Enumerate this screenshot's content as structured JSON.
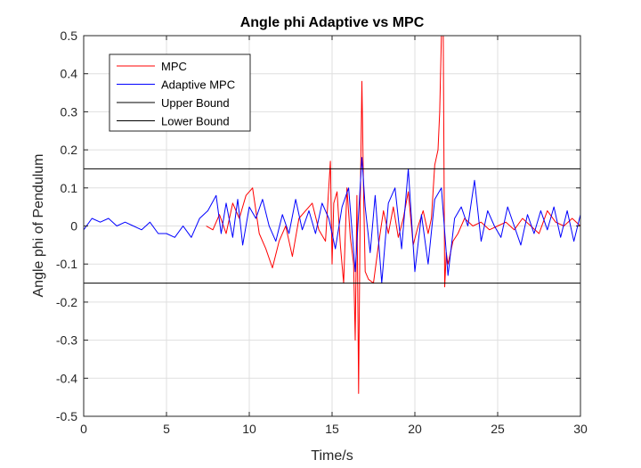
{
  "chart_data": {
    "type": "line",
    "title": "Angle phi Adaptive vs MPC",
    "xlabel": "Time/s",
    "ylabel": "Angle phi of Pendulum",
    "xlim": [
      0,
      30
    ],
    "ylim": [
      -0.5,
      0.5
    ],
    "xticks": [
      0,
      5,
      10,
      15,
      20,
      25,
      30
    ],
    "yticks": [
      -0.5,
      -0.4,
      -0.3,
      -0.2,
      -0.1,
      0,
      0.1,
      0.2,
      0.3,
      0.4,
      0.5
    ],
    "xtick_labels": [
      "0",
      "5",
      "10",
      "15",
      "20",
      "25",
      "30"
    ],
    "ytick_labels": [
      "-0.5",
      "-0.4",
      "-0.3",
      "-0.2",
      "-0.1",
      "0",
      "0.1",
      "0.2",
      "0.3",
      "0.4",
      "0.5"
    ],
    "grid": true,
    "legend_position": "top-left",
    "series": [
      {
        "name": "MPC",
        "color": "#ff0000",
        "x": [
          7.4,
          7.8,
          8.2,
          8.6,
          9.0,
          9.4,
          9.8,
          10.2,
          10.6,
          11.0,
          11.4,
          11.8,
          12.2,
          12.6,
          13.0,
          13.4,
          13.8,
          14.2,
          14.6,
          14.9,
          15.0,
          15.1,
          15.3,
          15.5,
          15.7,
          15.9,
          16.1,
          16.3,
          16.4,
          16.5,
          16.6,
          16.7,
          16.8,
          16.9,
          17.0,
          17.2,
          17.5,
          17.8,
          18.1,
          18.4,
          18.7,
          19.0,
          19.3,
          19.6,
          19.9,
          20.2,
          20.5,
          20.8,
          21.0,
          21.2,
          21.4,
          21.5,
          21.6,
          21.7,
          21.8,
          21.9,
          22.0,
          22.3,
          22.6,
          23.0,
          23.5,
          24.0,
          24.5,
          25.0,
          25.5,
          26.0,
          26.5,
          27.0,
          27.5,
          28.0,
          28.5,
          29.0,
          29.5,
          30.0
        ],
        "y": [
          0.0,
          -0.01,
          0.03,
          -0.02,
          0.06,
          0.02,
          0.08,
          0.1,
          -0.02,
          -0.06,
          -0.11,
          -0.04,
          0.0,
          -0.08,
          0.02,
          0.04,
          0.06,
          -0.01,
          -0.04,
          0.17,
          -0.1,
          0.06,
          0.09,
          -0.05,
          -0.15,
          0.1,
          -0.03,
          -0.1,
          -0.3,
          0.08,
          -0.44,
          0.05,
          0.38,
          0.1,
          -0.12,
          -0.14,
          -0.15,
          -0.05,
          0.04,
          -0.02,
          0.05,
          -0.03,
          0.02,
          0.09,
          -0.05,
          0.0,
          0.04,
          -0.02,
          0.02,
          0.16,
          0.2,
          0.3,
          0.5,
          0.62,
          -0.16,
          -0.07,
          -0.1,
          -0.04,
          -0.02,
          0.02,
          0.0,
          0.01,
          -0.01,
          0.0,
          0.01,
          -0.01,
          0.02,
          0.0,
          -0.02,
          0.04,
          0.01,
          0.0,
          0.02,
          0.0
        ]
      },
      {
        "name": "Adaptive MPC",
        "color": "#0000ff",
        "x": [
          0.0,
          0.5,
          1.0,
          1.5,
          2.0,
          2.5,
          3.0,
          3.5,
          4.0,
          4.5,
          5.0,
          5.5,
          6.0,
          6.5,
          7.0,
          7.5,
          8.0,
          8.3,
          8.6,
          9.0,
          9.3,
          9.6,
          10.0,
          10.4,
          10.8,
          11.2,
          11.6,
          12.0,
          12.4,
          12.8,
          13.2,
          13.6,
          14.0,
          14.4,
          14.8,
          15.2,
          15.6,
          16.0,
          16.4,
          16.8,
          17.0,
          17.3,
          17.6,
          18.0,
          18.4,
          18.8,
          19.2,
          19.6,
          20.0,
          20.4,
          20.8,
          21.2,
          21.6,
          22.0,
          22.4,
          22.8,
          23.2,
          23.6,
          24.0,
          24.4,
          24.8,
          25.2,
          25.6,
          26.0,
          26.4,
          26.8,
          27.2,
          27.6,
          28.0,
          28.4,
          28.8,
          29.2,
          29.6,
          30.0
        ],
        "y": [
          -0.01,
          0.02,
          0.01,
          0.02,
          0.0,
          0.01,
          0.0,
          -0.01,
          0.01,
          -0.02,
          -0.02,
          -0.03,
          0.0,
          -0.03,
          0.02,
          0.04,
          0.08,
          -0.02,
          0.06,
          -0.03,
          0.07,
          -0.05,
          0.05,
          0.02,
          0.07,
          0.0,
          -0.04,
          0.03,
          -0.02,
          0.07,
          -0.01,
          0.04,
          -0.02,
          0.06,
          0.02,
          -0.06,
          0.05,
          0.1,
          -0.12,
          0.18,
          0.05,
          -0.07,
          0.08,
          -0.15,
          0.06,
          0.1,
          -0.06,
          0.15,
          -0.12,
          0.03,
          -0.1,
          0.07,
          0.1,
          -0.13,
          0.02,
          0.05,
          0.0,
          0.12,
          -0.04,
          0.04,
          0.0,
          -0.03,
          0.05,
          0.0,
          -0.05,
          0.03,
          -0.02,
          0.04,
          -0.01,
          0.05,
          -0.03,
          0.04,
          -0.04,
          0.03
        ]
      },
      {
        "name": "Upper Bound",
        "color": "#000000",
        "x": [
          0,
          30
        ],
        "y": [
          0.15,
          0.15
        ]
      },
      {
        "name": "Lower Bound",
        "color": "#000000",
        "x": [
          0,
          30
        ],
        "y": [
          -0.15,
          -0.15
        ]
      }
    ]
  }
}
